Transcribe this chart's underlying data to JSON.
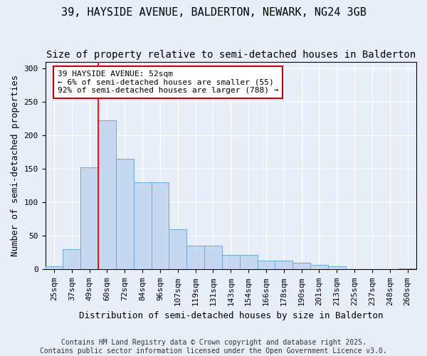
{
  "title": "39, HAYSIDE AVENUE, BALDERTON, NEWARK, NG24 3GB",
  "subtitle": "Size of property relative to semi-detached houses in Balderton",
  "xlabel": "Distribution of semi-detached houses by size in Balderton",
  "ylabel": "Number of semi-detached properties",
  "categories": [
    "25sqm",
    "37sqm",
    "49sqm",
    "60sqm",
    "72sqm",
    "84sqm",
    "96sqm",
    "107sqm",
    "119sqm",
    "131sqm",
    "143sqm",
    "154sqm",
    "166sqm",
    "178sqm",
    "190sqm",
    "201sqm",
    "213sqm",
    "225sqm",
    "237sqm",
    "248sqm",
    "260sqm"
  ],
  "values": [
    5,
    30,
    152,
    222,
    165,
    130,
    130,
    60,
    35,
    35,
    22,
    22,
    13,
    13,
    10,
    7,
    5,
    0,
    0,
    0,
    2
  ],
  "bar_color": "#c5d8ef",
  "bar_edge_color": "#6aaad5",
  "red_line_x": 2.5,
  "annotation_text": "39 HAYSIDE AVENUE: 52sqm\n← 6% of semi-detached houses are smaller (55)\n92% of semi-detached houses are larger (788) →",
  "annotation_box_color": "#ffffff",
  "annotation_box_edge": "#cc0000",
  "ylim": [
    0,
    310
  ],
  "yticks": [
    0,
    50,
    100,
    150,
    200,
    250,
    300
  ],
  "background_color": "#e8eef8",
  "footer_line1": "Contains HM Land Registry data © Crown copyright and database right 2025.",
  "footer_line2": "Contains public sector information licensed under the Open Government Licence v3.0.",
  "title_fontsize": 11,
  "subtitle_fontsize": 10,
  "xlabel_fontsize": 9,
  "ylabel_fontsize": 9,
  "tick_fontsize": 8,
  "annotation_fontsize": 8,
  "footer_fontsize": 7
}
